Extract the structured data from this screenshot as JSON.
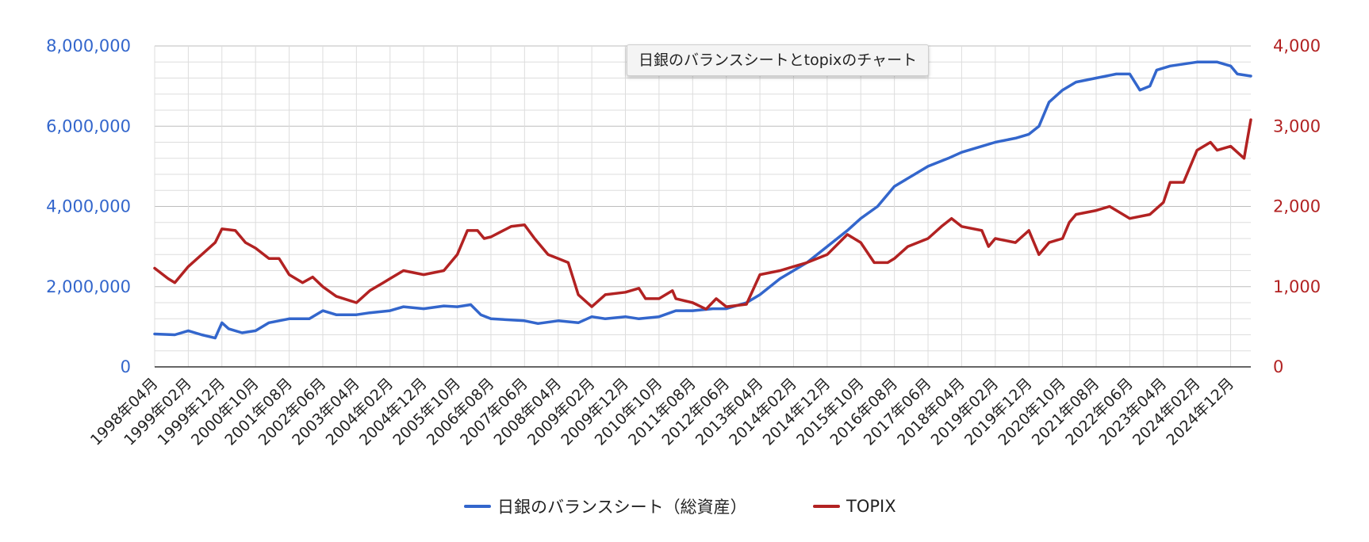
{
  "chart_data": {
    "type": "line",
    "tooltip_title": "日銀のバランスシートとtopixのチャート",
    "x_tick_labels": [
      "1998年04月",
      "1999年02月",
      "1999年12月",
      "2000年10月",
      "2001年08月",
      "2002年06月",
      "2003年04月",
      "2004年02月",
      "2004年12月",
      "2005年10月",
      "2006年08月",
      "2007年06月",
      "2008年04月",
      "2009年02月",
      "2009年12月",
      "2010年10月",
      "2011年08月",
      "2012年06月",
      "2013年04月",
      "2014年02月",
      "2014年12月",
      "2015年10月",
      "2016年08月",
      "2017年06月",
      "2018年04月",
      "2019年02月",
      "2019年12月",
      "2020年10月",
      "2021年08月",
      "2022年06月",
      "2023年04月",
      "2024年02月",
      "2024年12月"
    ],
    "x_range": [
      "1998年04月",
      "2025年06月"
    ],
    "left_axis": {
      "ylim": [
        0,
        8000000
      ],
      "tick_labels": [
        "0",
        "2,000,000",
        "4,000,000",
        "6,000,000",
        "8,000,000"
      ],
      "ticks": [
        0,
        2000000,
        4000000,
        6000000,
        8000000
      ],
      "color": "#3366cc"
    },
    "right_axis": {
      "ylim": [
        0,
        4000
      ],
      "tick_labels": [
        "0",
        "1,000",
        "2,000",
        "3,000",
        "4,000"
      ],
      "ticks": [
        0,
        1000,
        2000,
        3000,
        4000
      ],
      "color": "#b22222"
    },
    "grid": true,
    "legend_position": "bottom",
    "series": [
      {
        "name": "日銀のバランスシート（総資産）",
        "axis": "left",
        "color": "#3366cc",
        "points": [
          [
            "1998-04",
            820000
          ],
          [
            "1998-10",
            800000
          ],
          [
            "1999-02",
            900000
          ],
          [
            "1999-06",
            800000
          ],
          [
            "1999-10",
            720000
          ],
          [
            "1999-12",
            1100000
          ],
          [
            "2000-02",
            950000
          ],
          [
            "2000-06",
            850000
          ],
          [
            "2000-10",
            900000
          ],
          [
            "2001-02",
            1100000
          ],
          [
            "2001-08",
            1200000
          ],
          [
            "2002-02",
            1200000
          ],
          [
            "2002-06",
            1400000
          ],
          [
            "2002-10",
            1300000
          ],
          [
            "2003-04",
            1300000
          ],
          [
            "2003-08",
            1350000
          ],
          [
            "2004-02",
            1400000
          ],
          [
            "2004-06",
            1500000
          ],
          [
            "2004-12",
            1450000
          ],
          [
            "2005-06",
            1520000
          ],
          [
            "2005-10",
            1500000
          ],
          [
            "2006-02",
            1550000
          ],
          [
            "2006-05",
            1300000
          ],
          [
            "2006-08",
            1200000
          ],
          [
            "2007-06",
            1150000
          ],
          [
            "2007-10",
            1080000
          ],
          [
            "2008-04",
            1150000
          ],
          [
            "2008-10",
            1100000
          ],
          [
            "2009-02",
            1250000
          ],
          [
            "2009-06",
            1200000
          ],
          [
            "2009-12",
            1250000
          ],
          [
            "2010-04",
            1200000
          ],
          [
            "2010-10",
            1250000
          ],
          [
            "2011-03",
            1400000
          ],
          [
            "2011-08",
            1400000
          ],
          [
            "2012-02",
            1450000
          ],
          [
            "2012-06",
            1450000
          ],
          [
            "2012-12",
            1600000
          ],
          [
            "2013-04",
            1800000
          ],
          [
            "2013-10",
            2200000
          ],
          [
            "2014-02",
            2400000
          ],
          [
            "2014-06",
            2600000
          ],
          [
            "2014-12",
            3000000
          ],
          [
            "2015-06",
            3400000
          ],
          [
            "2015-10",
            3700000
          ],
          [
            "2016-03",
            4000000
          ],
          [
            "2016-08",
            4500000
          ],
          [
            "2017-02",
            4800000
          ],
          [
            "2017-06",
            5000000
          ],
          [
            "2017-12",
            5200000
          ],
          [
            "2018-04",
            5350000
          ],
          [
            "2018-10",
            5500000
          ],
          [
            "2019-02",
            5600000
          ],
          [
            "2019-08",
            5700000
          ],
          [
            "2019-12",
            5800000
          ],
          [
            "2020-03",
            6000000
          ],
          [
            "2020-06",
            6600000
          ],
          [
            "2020-10",
            6900000
          ],
          [
            "2021-02",
            7100000
          ],
          [
            "2021-08",
            7200000
          ],
          [
            "2022-02",
            7300000
          ],
          [
            "2022-06",
            7300000
          ],
          [
            "2022-09",
            6900000
          ],
          [
            "2022-12",
            7000000
          ],
          [
            "2023-02",
            7400000
          ],
          [
            "2023-06",
            7500000
          ],
          [
            "2024-02",
            7600000
          ],
          [
            "2024-08",
            7600000
          ],
          [
            "2024-12",
            7500000
          ],
          [
            "2025-02",
            7300000
          ],
          [
            "2025-06",
            7250000
          ]
        ]
      },
      {
        "name": "TOPIX",
        "axis": "right",
        "color": "#b22222",
        "points": [
          [
            "1998-04",
            1230
          ],
          [
            "1998-08",
            1100
          ],
          [
            "1998-10",
            1050
          ],
          [
            "1999-02",
            1250
          ],
          [
            "1999-06",
            1400
          ],
          [
            "1999-10",
            1550
          ],
          [
            "1999-12",
            1720
          ],
          [
            "2000-04",
            1700
          ],
          [
            "2000-07",
            1550
          ],
          [
            "2000-10",
            1480
          ],
          [
            "2001-02",
            1350
          ],
          [
            "2001-05",
            1350
          ],
          [
            "2001-08",
            1150
          ],
          [
            "2001-12",
            1050
          ],
          [
            "2002-03",
            1120
          ],
          [
            "2002-06",
            1000
          ],
          [
            "2002-10",
            880
          ],
          [
            "2003-04",
            800
          ],
          [
            "2003-08",
            950
          ],
          [
            "2003-12",
            1050
          ],
          [
            "2004-02",
            1100
          ],
          [
            "2004-06",
            1200
          ],
          [
            "2004-12",
            1150
          ],
          [
            "2005-06",
            1200
          ],
          [
            "2005-10",
            1400
          ],
          [
            "2006-01",
            1700
          ],
          [
            "2006-04",
            1700
          ],
          [
            "2006-06",
            1600
          ],
          [
            "2006-08",
            1620
          ],
          [
            "2007-02",
            1750
          ],
          [
            "2007-06",
            1770
          ],
          [
            "2007-09",
            1600
          ],
          [
            "2008-01",
            1400
          ],
          [
            "2008-04",
            1350
          ],
          [
            "2008-07",
            1300
          ],
          [
            "2008-10",
            900
          ],
          [
            "2009-02",
            750
          ],
          [
            "2009-06",
            900
          ],
          [
            "2009-12",
            930
          ],
          [
            "2010-04",
            980
          ],
          [
            "2010-06",
            850
          ],
          [
            "2010-10",
            850
          ],
          [
            "2011-02",
            950
          ],
          [
            "2011-03",
            850
          ],
          [
            "2011-08",
            800
          ],
          [
            "2011-12",
            720
          ],
          [
            "2012-03",
            850
          ],
          [
            "2012-06",
            750
          ],
          [
            "2012-12",
            780
          ],
          [
            "2013-04",
            1150
          ],
          [
            "2013-10",
            1200
          ],
          [
            "2014-02",
            1250
          ],
          [
            "2014-06",
            1300
          ],
          [
            "2014-12",
            1400
          ],
          [
            "2015-06",
            1650
          ],
          [
            "2015-10",
            1550
          ],
          [
            "2016-02",
            1300
          ],
          [
            "2016-06",
            1300
          ],
          [
            "2016-08",
            1350
          ],
          [
            "2016-12",
            1500
          ],
          [
            "2017-06",
            1600
          ],
          [
            "2017-10",
            1750
          ],
          [
            "2018-01",
            1850
          ],
          [
            "2018-04",
            1750
          ],
          [
            "2018-10",
            1700
          ],
          [
            "2018-12",
            1500
          ],
          [
            "2019-02",
            1600
          ],
          [
            "2019-08",
            1550
          ],
          [
            "2019-12",
            1700
          ],
          [
            "2020-03",
            1400
          ],
          [
            "2020-06",
            1550
          ],
          [
            "2020-10",
            1600
          ],
          [
            "2020-12",
            1800
          ],
          [
            "2021-02",
            1900
          ],
          [
            "2021-08",
            1950
          ],
          [
            "2021-12",
            2000
          ],
          [
            "2022-06",
            1850
          ],
          [
            "2022-12",
            1900
          ],
          [
            "2023-04",
            2050
          ],
          [
            "2023-06",
            2300
          ],
          [
            "2023-10",
            2300
          ],
          [
            "2024-02",
            2700
          ],
          [
            "2024-06",
            2800
          ],
          [
            "2024-08",
            2700
          ],
          [
            "2024-12",
            2750
          ],
          [
            "2025-04",
            2600
          ],
          [
            "2025-06",
            3080
          ]
        ]
      }
    ]
  }
}
